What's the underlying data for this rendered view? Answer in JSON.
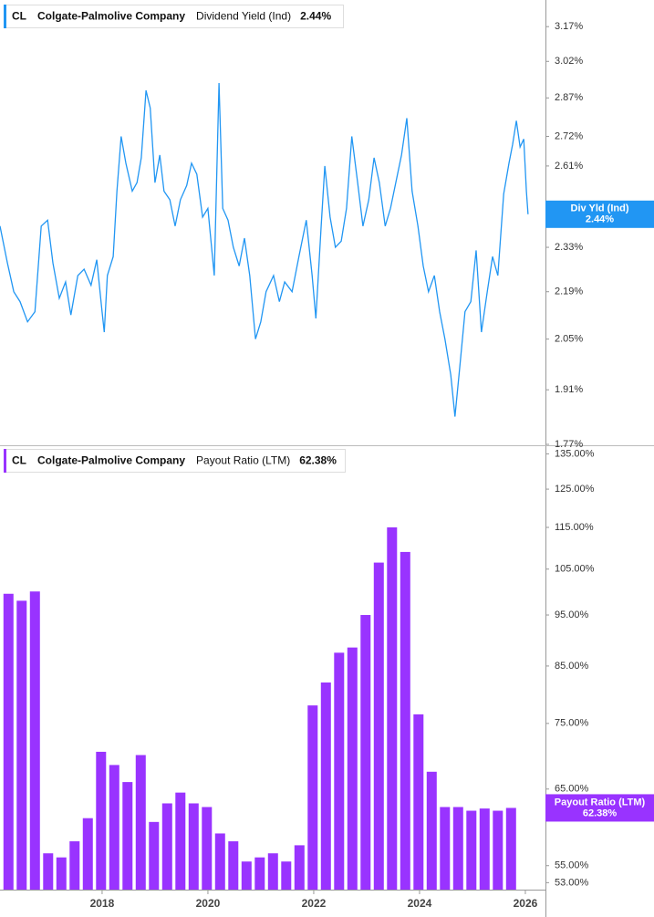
{
  "chart_data": [
    {
      "type": "line",
      "ticker": "CL",
      "company": "Colgate-Palmolive Company",
      "log": true,
      "xlim": [
        2016.07,
        2026.38
      ],
      "ylim": [
        1.77,
        3.29
      ],
      "yticks": [
        {
          "value": 1.77,
          "label": "1.77%"
        },
        {
          "value": 1.91,
          "label": "1.91%"
        },
        {
          "value": 2.05,
          "label": "2.05%"
        },
        {
          "value": 2.19,
          "label": "2.19%"
        },
        {
          "value": 2.33,
          "label": "2.33%"
        },
        {
          "value": 2.61,
          "label": "2.61%"
        },
        {
          "value": 2.72,
          "label": "2.72%"
        },
        {
          "value": 2.87,
          "label": "2.87%"
        },
        {
          "value": 3.02,
          "label": "3.02%"
        },
        {
          "value": 3.17,
          "label": "3.17%"
        }
      ],
      "x": [
        2016.07,
        2016.21,
        2016.33,
        2016.45,
        2016.59,
        2016.73,
        2016.85,
        2016.97,
        2017.07,
        2017.19,
        2017.31,
        2017.41,
        2017.54,
        2017.66,
        2017.79,
        2017.9,
        2018.0,
        2018.04,
        2018.1,
        2018.21,
        2018.28,
        2018.36,
        2018.45,
        2018.57,
        2018.66,
        2018.74,
        2018.83,
        2018.91,
        2019.0,
        2019.09,
        2019.17,
        2019.28,
        2019.38,
        2019.48,
        2019.6,
        2019.69,
        2019.79,
        2019.9,
        2020.0,
        2020.12,
        2020.21,
        2020.28,
        2020.38,
        2020.48,
        2020.59,
        2020.69,
        2020.79,
        2020.9,
        2021.0,
        2021.1,
        2021.24,
        2021.35,
        2021.45,
        2021.59,
        2021.72,
        2021.86,
        2021.97,
        2022.04,
        2022.14,
        2022.21,
        2022.31,
        2022.41,
        2022.52,
        2022.62,
        2022.72,
        2022.83,
        2022.93,
        2023.04,
        2023.14,
        2023.24,
        2023.35,
        2023.45,
        2023.55,
        2023.66,
        2023.76,
        2023.86,
        2023.97,
        2024.07,
        2024.17,
        2024.28,
        2024.38,
        2024.48,
        2024.59,
        2024.67,
        2024.76,
        2024.86,
        2024.97,
        2025.07,
        2025.17,
        2025.28,
        2025.38,
        2025.48,
        2025.59,
        2025.69,
        2025.76,
        2025.83,
        2025.9,
        2025.97,
        2026.02,
        2026.05
      ],
      "series": [
        {
          "name": "Dividend Yield (Ind)",
          "short_name": "Div Yld (Ind)",
          "last_label": "2.44%",
          "color": "#2196f3",
          "values": [
            2.4,
            2.28,
            2.19,
            2.16,
            2.1,
            2.13,
            2.4,
            2.42,
            2.28,
            2.17,
            2.22,
            2.12,
            2.24,
            2.26,
            2.21,
            2.29,
            2.13,
            2.07,
            2.24,
            2.3,
            2.52,
            2.72,
            2.62,
            2.52,
            2.55,
            2.64,
            2.9,
            2.83,
            2.55,
            2.65,
            2.52,
            2.49,
            2.4,
            2.49,
            2.54,
            2.62,
            2.58,
            2.43,
            2.46,
            2.24,
            2.93,
            2.46,
            2.42,
            2.33,
            2.27,
            2.36,
            2.24,
            2.05,
            2.1,
            2.19,
            2.24,
            2.16,
            2.22,
            2.19,
            2.3,
            2.42,
            2.24,
            2.11,
            2.4,
            2.61,
            2.43,
            2.33,
            2.35,
            2.46,
            2.72,
            2.55,
            2.4,
            2.49,
            2.64,
            2.55,
            2.4,
            2.46,
            2.55,
            2.65,
            2.79,
            2.52,
            2.4,
            2.27,
            2.19,
            2.24,
            2.13,
            2.05,
            1.95,
            1.84,
            1.97,
            2.13,
            2.16,
            2.32,
            2.07,
            2.19,
            2.3,
            2.24,
            2.51,
            2.62,
            2.69,
            2.78,
            2.68,
            2.71,
            2.52,
            2.44
          ]
        }
      ]
    },
    {
      "type": "bar",
      "ticker": "CL",
      "company": "Colgate-Palmolive Company",
      "log": true,
      "xlim": [
        2016.07,
        2026.38
      ],
      "ylim": [
        52.2,
        137
      ],
      "xticks": [
        2018,
        2020,
        2022,
        2024,
        2026
      ],
      "yticks": [
        {
          "value": 53,
          "label": "53.00%"
        },
        {
          "value": 55,
          "label": "55.00%"
        },
        {
          "value": 65,
          "label": "65.00%"
        },
        {
          "value": 75,
          "label": "75.00%"
        },
        {
          "value": 85,
          "label": "85.00%"
        },
        {
          "value": 95,
          "label": "95.00%"
        },
        {
          "value": 105,
          "label": "105.00%"
        },
        {
          "value": 115,
          "label": "115.00%"
        },
        {
          "value": 125,
          "label": "125.00%"
        },
        {
          "value": 135,
          "label": "135.00%"
        }
      ],
      "x": [
        2016.23,
        2016.48,
        2016.73,
        2016.98,
        2017.23,
        2017.48,
        2017.73,
        2017.98,
        2018.23,
        2018.48,
        2018.73,
        2018.98,
        2019.23,
        2019.48,
        2019.73,
        2019.98,
        2020.23,
        2020.48,
        2020.73,
        2020.98,
        2021.23,
        2021.48,
        2021.73,
        2021.98,
        2022.23,
        2022.48,
        2022.73,
        2022.98,
        2023.23,
        2023.48,
        2023.73,
        2023.98,
        2024.23,
        2024.48,
        2024.73,
        2024.98,
        2025.23,
        2025.48,
        2025.73
      ],
      "series": [
        {
          "name": "Payout Ratio (LTM)",
          "short_name": "Payout Ratio (LTM)",
          "last_label": "62.38%",
          "color": "#9933ff",
          "values": [
            99.5,
            98,
            100,
            56.5,
            56,
            58,
            61,
            70.5,
            68.5,
            66,
            70,
            60.5,
            63,
            64.5,
            63,
            62.5,
            59,
            58,
            55.5,
            56,
            56.5,
            55.5,
            57.5,
            78,
            82,
            87.5,
            88.5,
            95,
            106.5,
            115,
            109,
            76.5,
            67.5,
            62.5,
            62.5,
            62,
            62.3,
            62,
            62.38
          ]
        }
      ]
    }
  ]
}
